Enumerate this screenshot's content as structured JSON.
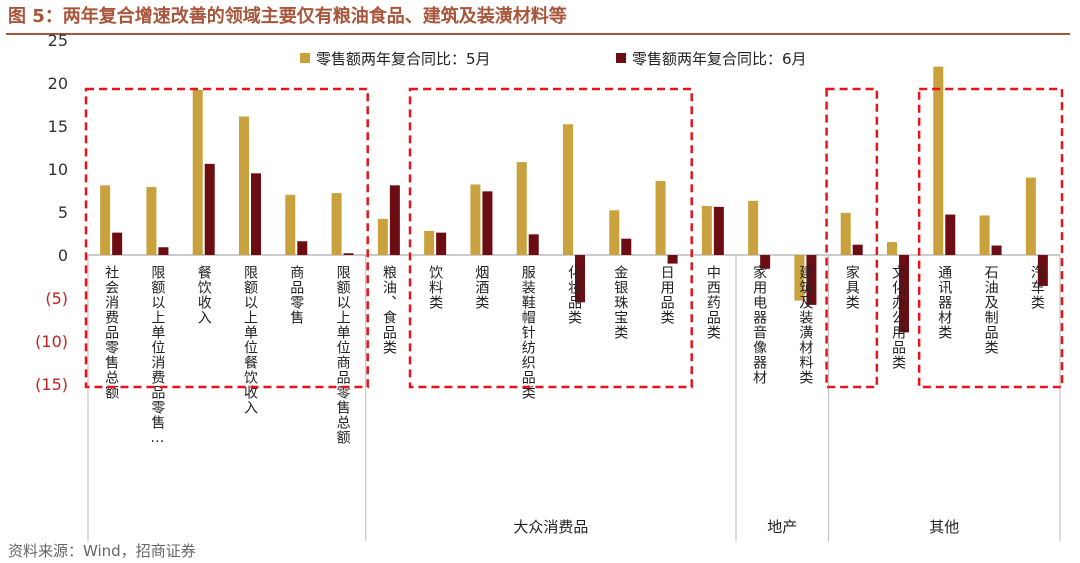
{
  "header": {
    "title": "图 5：两年复合增速改善的领域主要仅有粮油食品、建筑及装潢材料等"
  },
  "footer": {
    "source": "资料来源：Wind，招商证券"
  },
  "colors": {
    "series_may": "#c9a23e",
    "series_june": "#6b0d13",
    "highlight_box": "#e8141b",
    "negative_tick": "#c0231f",
    "title": "#a8553a"
  },
  "chart_data": {
    "type": "bar",
    "categories": [
      "社会消费品零售总额",
      "限额以上单位消费品零售…",
      "餐饮收入",
      "限额以上单位餐饮收入",
      "商品零售",
      "限额以上单位商品零售总额",
      "粮油、食品类",
      "饮料类",
      "烟酒类",
      "服装鞋帽针纺织品类",
      "化妆品类",
      "金银珠宝类",
      "日用品类",
      "中西药品类",
      "家用电器音像器材",
      "建筑及装潢材料类",
      "家具类",
      "文化办公用品类",
      "通讯器材类",
      "石油及制品类",
      "汽车类"
    ],
    "series": [
      {
        "name": "零售额两年复合同比：5月",
        "values": [
          8.1,
          7.9,
          19.2,
          16.1,
          7.0,
          7.2,
          4.2,
          2.8,
          8.2,
          10.8,
          15.2,
          5.2,
          8.6,
          5.7,
          6.3,
          -5.3,
          4.9,
          1.5,
          21.9,
          4.6,
          9.0
        ]
      },
      {
        "name": "零售额两年复合同比：6月",
        "values": [
          2.6,
          0.9,
          10.6,
          9.5,
          1.6,
          0.2,
          8.1,
          2.6,
          7.4,
          2.4,
          -5.5,
          1.9,
          -1.0,
          5.6,
          -1.6,
          -5.8,
          1.2,
          -9.0,
          4.7,
          1.1,
          -3.6
        ]
      }
    ],
    "ylim": [
      -15,
      25
    ],
    "yticks": [
      25,
      20,
      15,
      10,
      5,
      0,
      -5,
      -10,
      -15
    ],
    "ytick_labels": [
      "25",
      "20",
      "15",
      "10",
      "5",
      "0",
      "(5)",
      "(10)",
      "(15)"
    ],
    "groups": [
      {
        "label": "",
        "start": 0,
        "end": 5
      },
      {
        "label": "大众消费品",
        "start": 6,
        "end": 14
      },
      {
        "label": "地产",
        "start": 14,
        "end": 16
      },
      {
        "label": "其他",
        "start": 17,
        "end": 20
      }
    ],
    "highlight_ranges": [
      [
        0,
        5
      ],
      [
        7,
        12
      ],
      [
        16,
        16
      ],
      [
        18,
        20
      ]
    ],
    "legend_position": "top-center",
    "grid": false
  }
}
